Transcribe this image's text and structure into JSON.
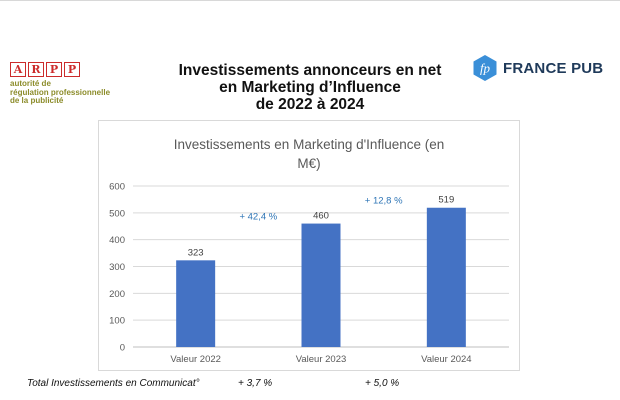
{
  "arpp": {
    "letters": [
      "A",
      "R",
      "P",
      "P"
    ],
    "tagline": [
      "autorité de",
      "régulation professionnelle",
      "de la publicité"
    ]
  },
  "page_title": {
    "lines": [
      "Investissements annonceurs en net",
      "en Marketing d’Influence",
      "de 2022 à 2024"
    ]
  },
  "france_pub": {
    "badge": "fp",
    "name": "FRANCE PUB",
    "color": "#3a8fd8"
  },
  "chart_data": {
    "type": "bar",
    "title": "Investissements en Marketing d'Influence (en M€)",
    "title_lines": [
      "Investissements en Marketing d'Influence (en",
      "M€)"
    ],
    "categories": [
      "Valeur 2022",
      "Valeur 2023",
      "Valeur 2024"
    ],
    "values": [
      323,
      460,
      519
    ],
    "data_labels": [
      "323",
      "460",
      "519"
    ],
    "ylim": [
      0,
      600
    ],
    "yticks": [
      0,
      100,
      200,
      300,
      400,
      500,
      600
    ],
    "bar_color": "#4472c4",
    "gridlines": true,
    "growth_annotations": [
      {
        "label": "+ 42,4 %",
        "between": [
          0,
          1
        ]
      },
      {
        "label": "+ 12,8 %",
        "between": [
          1,
          2
        ]
      }
    ],
    "annotation_color": "#2e75b6"
  },
  "footer": {
    "label": "Total Investissements en Communicat°",
    "growth": [
      "+ 3,7 %",
      "+ 5,0 %"
    ]
  }
}
